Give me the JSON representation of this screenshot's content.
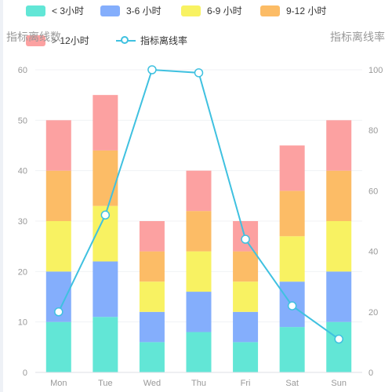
{
  "legend": {
    "items": [
      {
        "label": "< 3小时",
        "color": "#62e6d6"
      },
      {
        "label": "3-6 小时",
        "color": "#84aefc"
      },
      {
        "label": "6-9 小时",
        "color": "#f8f262"
      },
      {
        "label": "9-12 小时",
        "color": "#fcbc66"
      },
      {
        "label": "> 12小时",
        "color": "#fca1a1"
      },
      {
        "label": "指标离线率",
        "color": "#3fc1e0"
      }
    ]
  },
  "chart_data": {
    "type": "bar",
    "stacked": true,
    "categories": [
      "Mon",
      "Tue",
      "Wed",
      "Thu",
      "Fri",
      "Sat",
      "Sun"
    ],
    "series": [
      {
        "name": "< 3小时",
        "type": "bar",
        "axis": "left",
        "color": "#62e6d6",
        "values": [
          10,
          11,
          6,
          8,
          6,
          9,
          10
        ]
      },
      {
        "name": "3-6 小时",
        "type": "bar",
        "axis": "left",
        "color": "#84aefc",
        "values": [
          10,
          11,
          6,
          8,
          6,
          9,
          10
        ]
      },
      {
        "name": "6-9 小时",
        "type": "bar",
        "axis": "left",
        "color": "#f8f262",
        "values": [
          10,
          11,
          6,
          8,
          6,
          9,
          10
        ]
      },
      {
        "name": "9-12 小时",
        "type": "bar",
        "axis": "left",
        "color": "#fcbc66",
        "values": [
          10,
          11,
          6,
          8,
          6,
          9,
          10
        ]
      },
      {
        "name": "> 12小时",
        "type": "bar",
        "axis": "left",
        "color": "#fca1a1",
        "values": [
          10,
          11,
          6,
          8,
          6,
          9,
          10
        ]
      },
      {
        "name": "指标离线率",
        "type": "line",
        "axis": "right",
        "color": "#3fc1e0",
        "values": [
          20,
          52,
          100,
          99,
          44,
          22,
          11
        ]
      }
    ],
    "y_left": {
      "label": "指标离线数",
      "min": 0,
      "max": 60,
      "ticks": [
        0,
        10,
        20,
        30,
        40,
        50,
        60
      ]
    },
    "y_right": {
      "label": "指标离线率",
      "min": 0,
      "max": 100,
      "ticks": [
        0,
        20,
        40,
        60,
        80,
        100
      ]
    },
    "grid": true,
    "legend_position": "top"
  }
}
